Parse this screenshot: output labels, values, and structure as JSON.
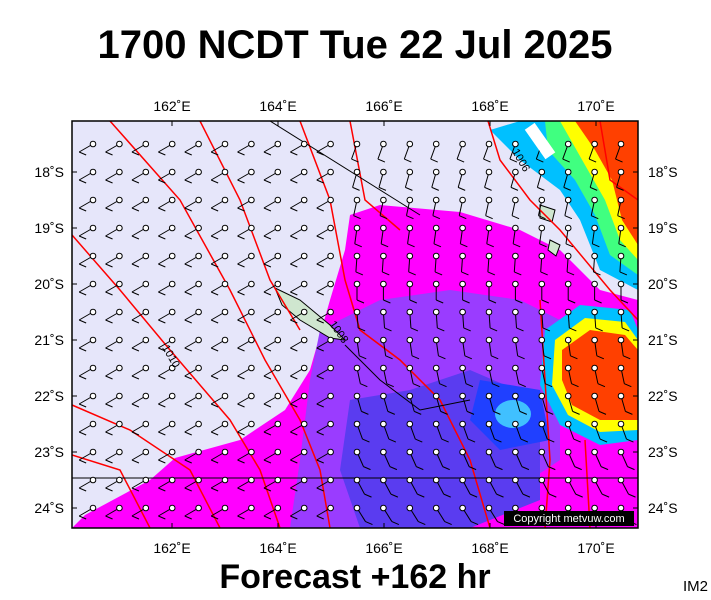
{
  "header": {
    "title": "1700 NCDT Tue 22 Jul 2025"
  },
  "map": {
    "lon_labels": [
      "162˚E",
      "164˚E",
      "166˚E",
      "168˚E",
      "170˚E"
    ],
    "lat_labels": [
      "18˚S",
      "19˚S",
      "20˚S",
      "21˚S",
      "22˚S",
      "23˚S",
      "24˚S"
    ],
    "contour_labels": [
      "1006",
      "1008",
      "1010"
    ],
    "copyright": "Copyright metvuw.com"
  },
  "footer": {
    "forecast": "Forecast +162 hr",
    "image_id": "IM2"
  }
}
